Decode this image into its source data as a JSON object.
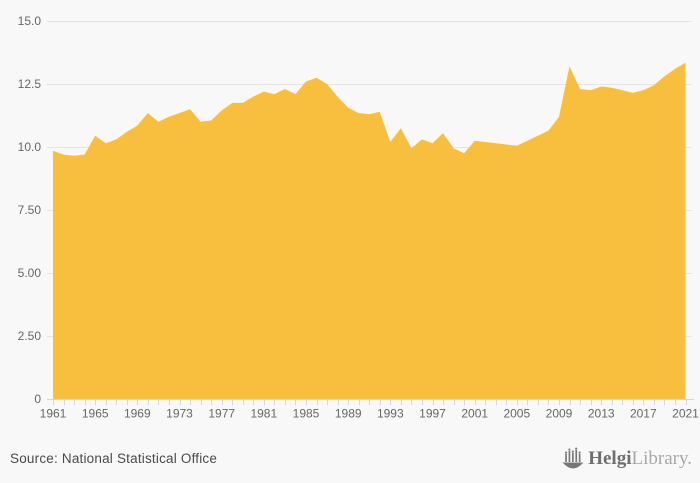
{
  "page": {
    "background": "#f8f8f8"
  },
  "chart_data": {
    "type": "area",
    "title": "",
    "xlabel": "",
    "ylabel": "",
    "grid": true,
    "legend": false,
    "area_color": "#F8BE3D",
    "grid_color": "#e4e4e4",
    "axis_color": "#ccd6eb",
    "tick_label_color": "#666666",
    "ylim": [
      0,
      15
    ],
    "yticks": [
      0,
      2.5,
      5,
      7.5,
      10,
      12.5,
      15
    ],
    "ytick_labels": [
      "0",
      "2.50",
      "5.00",
      "7.50",
      "10.0",
      "12.5",
      "15.0"
    ],
    "xtick_labels": [
      "1961",
      "1965",
      "1969",
      "1973",
      "1977",
      "1981",
      "1985",
      "1989",
      "1993",
      "1997",
      "2001",
      "2005",
      "2009",
      "2013",
      "2017",
      "2021"
    ],
    "xtick_label_step": 4,
    "x": [
      1961,
      1962,
      1963,
      1964,
      1965,
      1966,
      1967,
      1968,
      1969,
      1970,
      1971,
      1972,
      1973,
      1974,
      1975,
      1976,
      1977,
      1978,
      1979,
      1980,
      1981,
      1982,
      1983,
      1984,
      1985,
      1986,
      1987,
      1988,
      1989,
      1990,
      1991,
      1992,
      1993,
      1994,
      1995,
      1996,
      1997,
      1998,
      1999,
      2000,
      2001,
      2002,
      2003,
      2004,
      2005,
      2006,
      2007,
      2008,
      2009,
      2010,
      2011,
      2012,
      2013,
      2014,
      2015,
      2016,
      2017,
      2018,
      2019,
      2020,
      2021
    ],
    "values": [
      9.85,
      9.7,
      9.65,
      9.7,
      10.45,
      10.15,
      10.3,
      10.6,
      10.85,
      11.35,
      11.0,
      11.2,
      11.35,
      11.5,
      11.0,
      11.05,
      11.45,
      11.75,
      11.75,
      12.0,
      12.2,
      12.1,
      12.3,
      12.1,
      12.6,
      12.75,
      12.5,
      12.0,
      11.55,
      11.35,
      11.3,
      11.4,
      10.2,
      10.75,
      9.95,
      10.3,
      10.15,
      10.55,
      9.95,
      9.75,
      10.25,
      10.2,
      10.15,
      10.1,
      10.05,
      10.25,
      10.45,
      10.65,
      11.2,
      13.2,
      12.3,
      12.25,
      12.4,
      12.35,
      12.25,
      12.15,
      12.25,
      12.45,
      12.8,
      13.1,
      13.35
    ]
  },
  "footer": {
    "source_label": "Source: National Statistical Office",
    "logo": {
      "name_bold": "Helgi",
      "name_light": "Library."
    }
  }
}
